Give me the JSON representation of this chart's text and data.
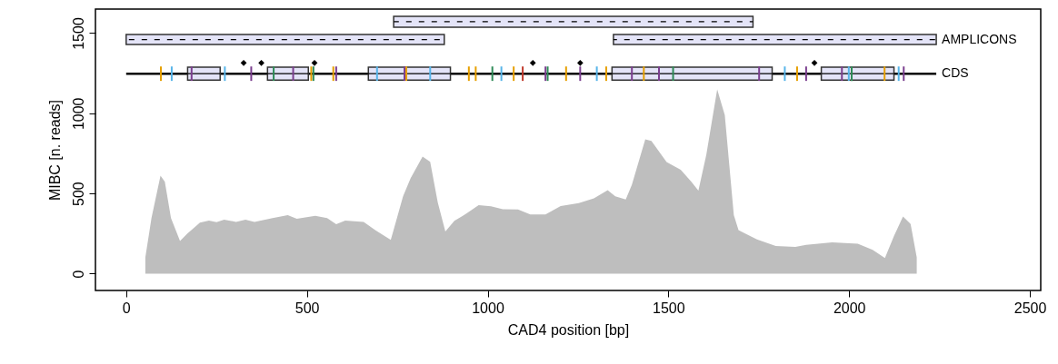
{
  "chart_data": {
    "type": "area",
    "xlabel": "CAD4 position [bp]",
    "ylabel": "MIBC [n. reads]",
    "xlim": [
      -85,
      2530
    ],
    "ylim": [
      -105,
      1650
    ],
    "xticks": [
      0,
      500,
      1000,
      1500,
      2000,
      2500
    ],
    "yticks": [
      0,
      500,
      1000,
      1500
    ],
    "series": [
      {
        "color": "#bebebe",
        "x": [
          53,
          70,
          95,
          107,
          124,
          149,
          170,
          204,
          229,
          250,
          271,
          304,
          330,
          355,
          405,
          447,
          472,
          523,
          556,
          581,
          606,
          657,
          690,
          732,
          766,
          787,
          820,
          841,
          862,
          883,
          908,
          942,
          975,
          1009,
          1042,
          1084,
          1118,
          1160,
          1202,
          1252,
          1294,
          1332,
          1353,
          1382,
          1399,
          1436,
          1453,
          1495,
          1534,
          1563,
          1583,
          1605,
          1635,
          1656,
          1681,
          1694,
          1745,
          1797,
          1851,
          1881,
          1953,
          2024,
          2065,
          2099,
          2124,
          2149,
          2170,
          2187
        ],
        "values": [
          100,
          346,
          611,
          573,
          346,
          204,
          251,
          318,
          331,
          321,
          337,
          323,
          337,
          323,
          346,
          365,
          342,
          361,
          346,
          308,
          331,
          323,
          270,
          210,
          482,
          595,
          730,
          698,
          444,
          263,
          329,
          376,
          427,
          420,
          401,
          400,
          369,
          369,
          421,
          440,
          469,
          520,
          482,
          463,
          554,
          837,
          828,
          696,
          648,
          575,
          518,
          743,
          1149,
          989,
          365,
          271,
          214,
          172,
          167,
          180,
          195,
          186,
          148,
          98,
          234,
          357,
          310,
          102
        ]
      },
      {
        "type": "line",
        "color": "#000000",
        "line_style": "dashed",
        "x": [
          0,
          880
        ],
        "values": [
          1460,
          1460
        ],
        "lower": [
          1429,
          1429
        ],
        "upper": [
          1491,
          1491
        ]
      },
      {
        "type": "line",
        "color": "#000000",
        "line_style": "dashed",
        "x": [
          740,
          1734
        ],
        "values": [
          1571,
          1571
        ],
        "lower": [
          1537,
          1537
        ],
        "upper": [
          1605,
          1605
        ]
      },
      {
        "type": "line",
        "name": "AMPLICONS",
        "color": "#000000",
        "line_style": "dashed",
        "x": [
          1348,
          2241
        ],
        "values": [
          1460,
          1460
        ],
        "lower": [
          1429,
          1429
        ],
        "upper": [
          1491,
          1491
        ]
      },
      {
        "type": "line",
        "name": "CDS",
        "color": "#000000",
        "x": [
          0,
          2241
        ],
        "values": [
          1247,
          1247
        ]
      },
      {
        "type": "line",
        "color": "#000000",
        "x": [
          170,
          260
        ],
        "values": [
          1247,
          1247
        ],
        "lower": [
          1207,
          1207
        ],
        "upper": [
          1287,
          1287
        ]
      },
      {
        "type": "line",
        "color": "#000000",
        "x": [
          391,
          504
        ],
        "values": [
          1247,
          1247
        ],
        "lower": [
          1207,
          1207
        ],
        "upper": [
          1287,
          1287
        ]
      },
      {
        "type": "line",
        "color": "#000000",
        "x": [
          670,
          897
        ],
        "values": [
          1247,
          1247
        ],
        "lower": [
          1207,
          1207
        ],
        "upper": [
          1287,
          1287
        ]
      },
      {
        "type": "line",
        "color": "#000000",
        "x": [
          1344,
          1787
        ],
        "values": [
          1247,
          1247
        ],
        "lower": [
          1207,
          1207
        ],
        "upper": [
          1287,
          1287
        ]
      },
      {
        "type": "line",
        "color": "#000000",
        "x": [
          1923,
          2124
        ],
        "values": [
          1247,
          1247
        ],
        "lower": [
          1207,
          1207
        ],
        "upper": [
          1287,
          1287
        ]
      },
      {
        "type": "bar",
        "x": [
          96,
          126,
          181,
          273,
          346,
          408,
          462,
          512,
          518,
          573,
          581,
          694,
          770,
          775,
          841,
          948,
          967,
          1013,
          1038,
          1072,
          1097,
          1160,
          1166,
          1217,
          1256,
          1302,
          1328,
          1399,
          1432,
          1474,
          1513,
          1751,
          1822,
          1856,
          1881,
          1980,
          1999,
          2007,
          2098,
          2137,
          2151
        ],
        "base": [
          1202,
          1202,
          1202,
          1202,
          1202,
          1202,
          1202,
          1202,
          1202,
          1202,
          1202,
          1202,
          1202,
          1202,
          1202,
          1202,
          1202,
          1202,
          1202,
          1202,
          1202,
          1202,
          1202,
          1202,
          1202,
          1202,
          1202,
          1202,
          1202,
          1202,
          1202,
          1202,
          1202,
          1202,
          1202,
          1202,
          1202,
          1202,
          1202,
          1202,
          1202
        ],
        "values": [
          90,
          90,
          90,
          90,
          90,
          90,
          90,
          90,
          90,
          90,
          90,
          90,
          90,
          90,
          90,
          90,
          90,
          90,
          90,
          90,
          90,
          90,
          90,
          90,
          90,
          90,
          90,
          90,
          90,
          90,
          90,
          90,
          90,
          90,
          90,
          90,
          90,
          90,
          90,
          90,
          90
        ],
        "colors": [
          "#e69f00",
          "#56b4e9",
          "#7b3f8f",
          "#56b4e9",
          "#7b3f8f",
          "#2e8b57",
          "#7b3f8f",
          "#e69f00",
          "#2e8b57",
          "#e69f00",
          "#7b3f8f",
          "#56b4e9",
          "#7b3f8f",
          "#e69f00",
          "#56b4e9",
          "#e69f00",
          "#e69f00",
          "#2e8b57",
          "#56b4e9",
          "#e69f00",
          "#c0392b",
          "#7b3f8f",
          "#2e8b57",
          "#e69f00",
          "#7b3f8f",
          "#56b4e9",
          "#e69f00",
          "#7b3f8f",
          "#e69f00",
          "#7b3f8f",
          "#2e8b57",
          "#7b3f8f",
          "#56b4e9",
          "#e69f00",
          "#7b3f8f",
          "#7b3f8f",
          "#56b4e9",
          "#2e8b57",
          "#e69f00",
          "#56b4e9",
          "#7b3f8f"
        ]
      },
      {
        "type": "scatter",
        "marker": "diamond",
        "color": "#000000",
        "x": [
          325,
          374,
          521,
          1125,
          1256,
          1904
        ],
        "values": [
          1314,
          1314,
          1314,
          1314,
          1314,
          1314
        ]
      }
    ]
  }
}
